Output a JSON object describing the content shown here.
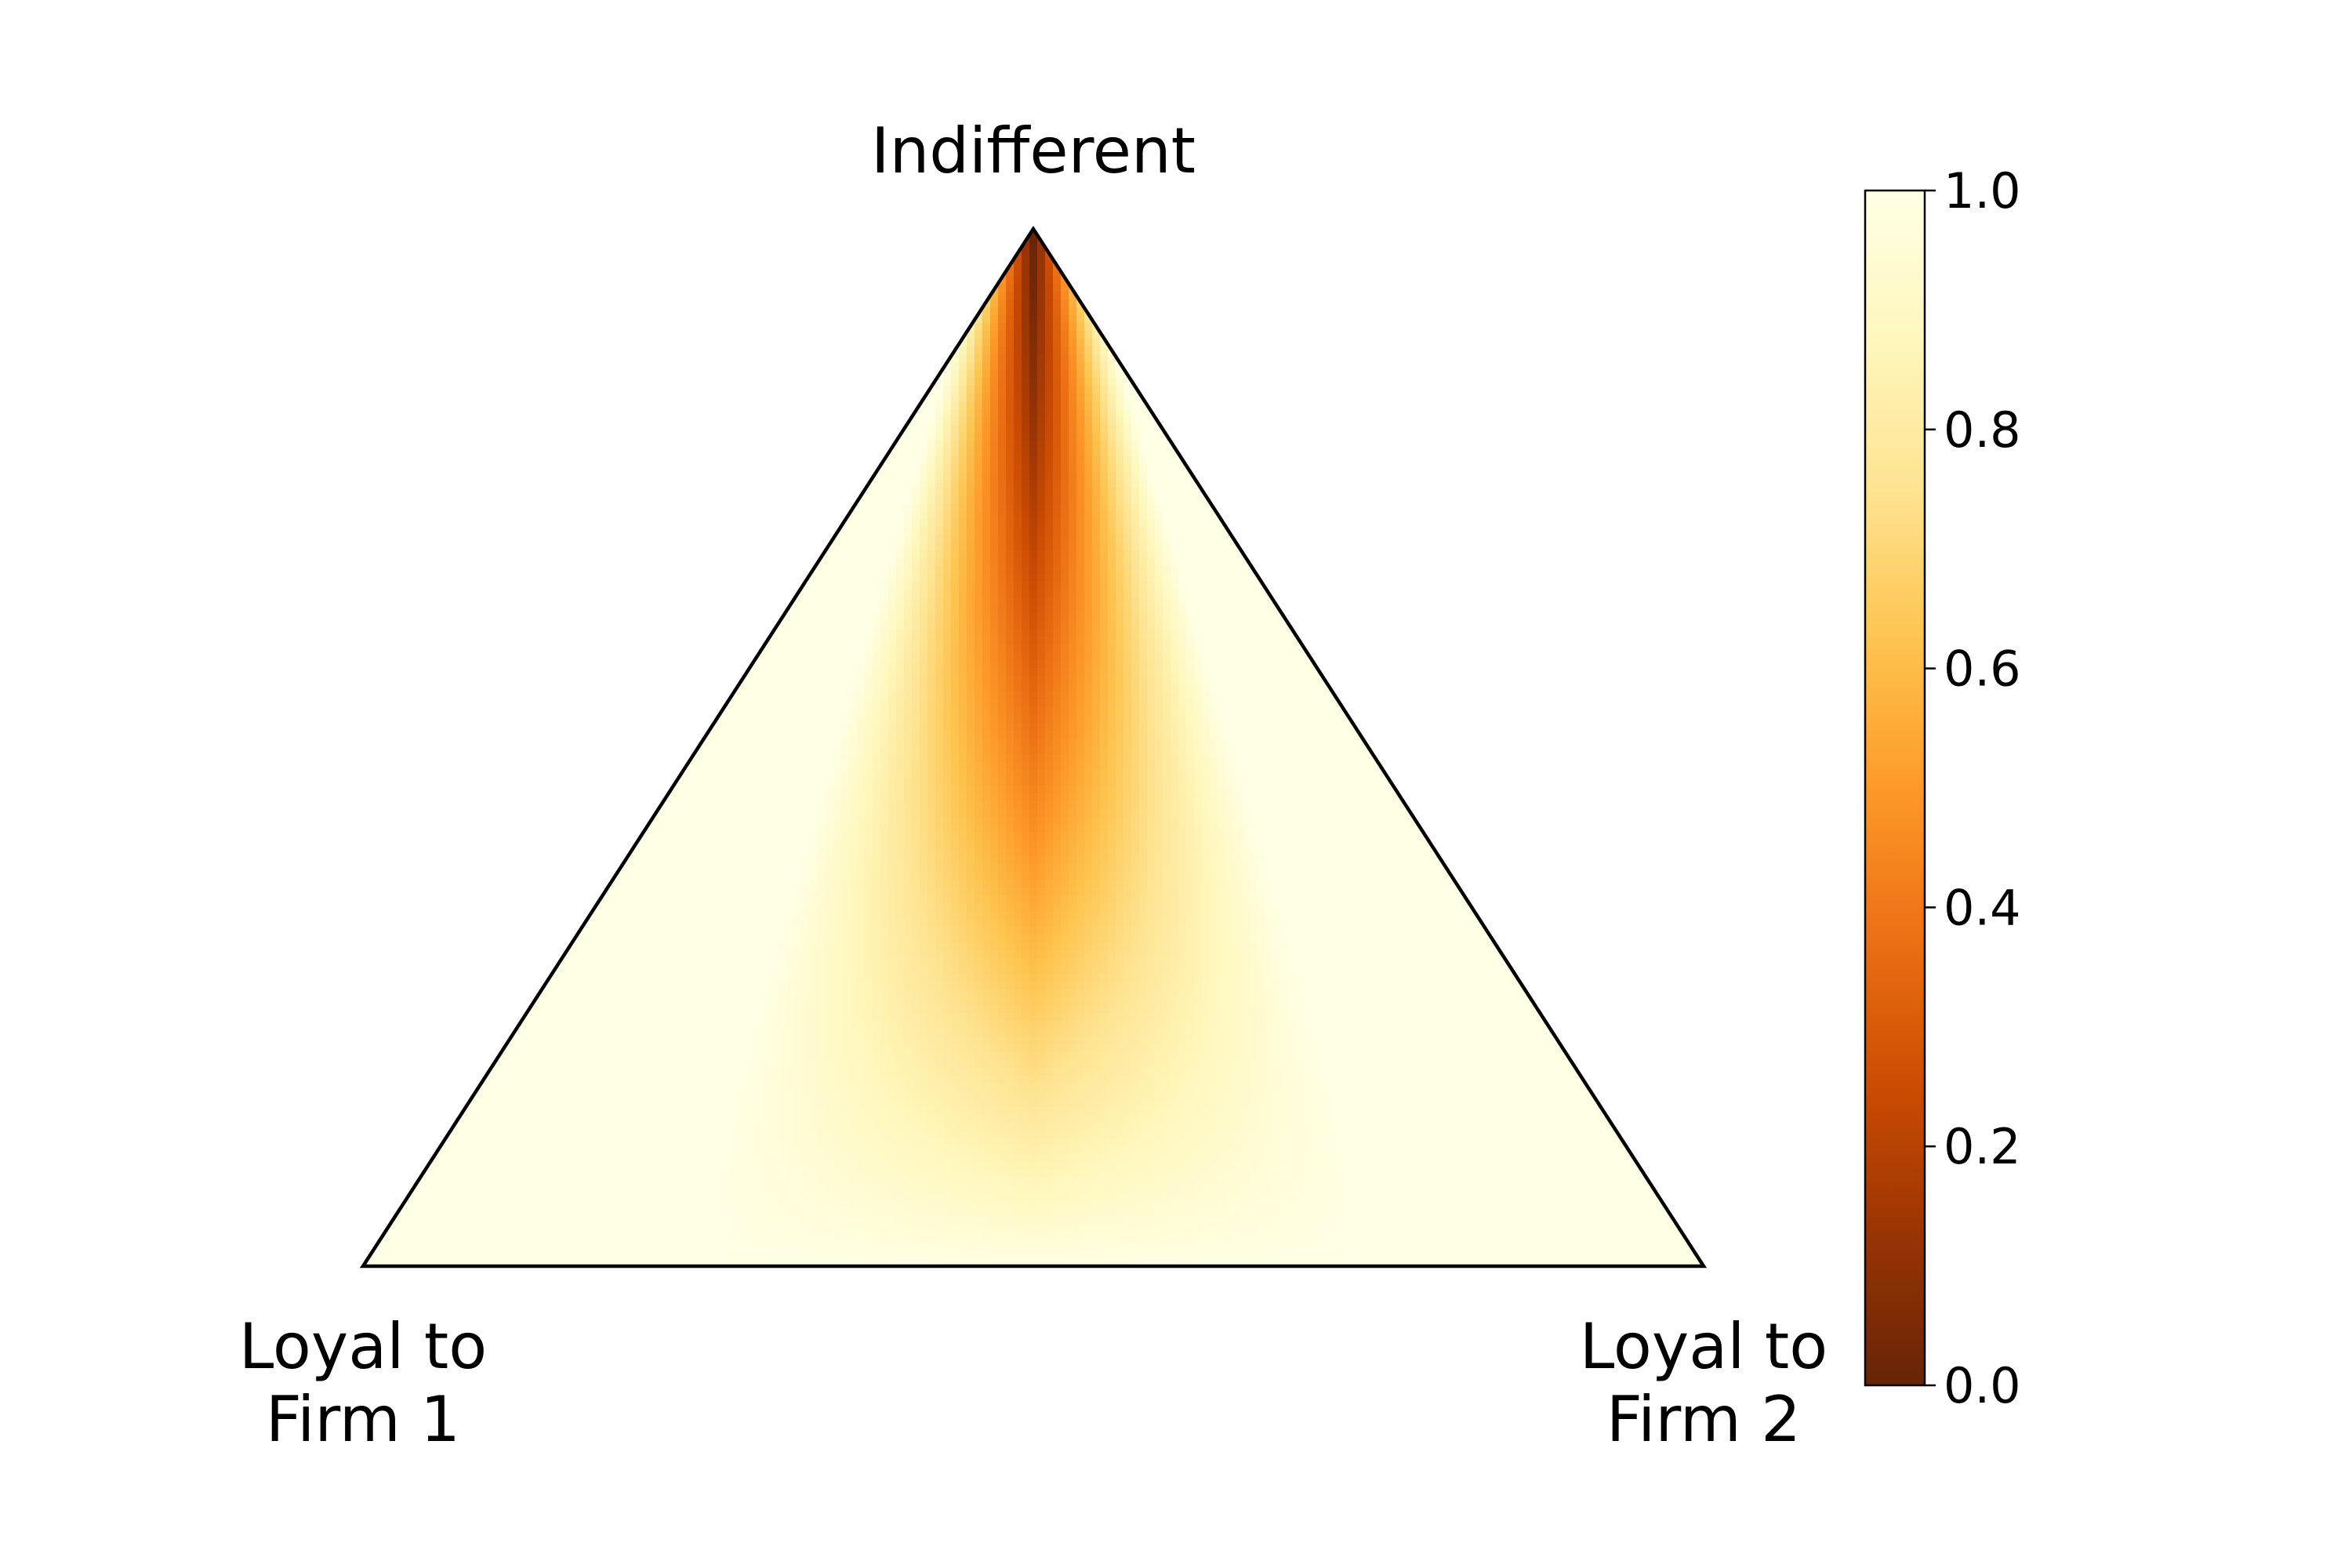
{
  "chart_data": {
    "type": "heatmap",
    "subtype": "ternary-simplex",
    "vertices": {
      "top": "Indifferent",
      "bottom_left": [
        "Loyal to",
        "Firm 1"
      ],
      "bottom_right": [
        "Loyal to",
        "Firm 2"
      ]
    },
    "colorbar": {
      "colormap": "YlOrBr_r",
      "range": [
        0.0,
        1.0
      ],
      "ticks": [
        "0.0",
        "0.2",
        "0.4",
        "0.6",
        "0.8",
        "1.0"
      ],
      "colors": [
        "#662506",
        "#993404",
        "#cc4c02",
        "#ec7014",
        "#fe9929",
        "#fec44f",
        "#fee391",
        "#fff7bc",
        "#ffffe5"
      ]
    },
    "field": {
      "description_values": "value is ~0.0 at the Indifferent vertex, ~0.5 near the middle of the central axis, and ~1.0 toward the bottom edge and both Loyal corners",
      "samples": [
        {
          "x_share_firm2_minus_firm1": 0.0,
          "indifferent_share": 1.0,
          "value": 0.0
        },
        {
          "x_share_firm2_minus_firm1": 0.0,
          "indifferent_share": 0.8,
          "value": 0.22
        },
        {
          "x_share_firm2_minus_firm1": 0.0,
          "indifferent_share": 0.6,
          "value": 0.48
        },
        {
          "x_share_firm2_minus_firm1": 0.0,
          "indifferent_share": 0.4,
          "value": 0.68
        },
        {
          "x_share_firm2_minus_firm1": 0.0,
          "indifferent_share": 0.2,
          "value": 0.86
        },
        {
          "x_share_firm2_minus_firm1": 0.0,
          "indifferent_share": 0.0,
          "value": 0.98
        }
      ]
    }
  }
}
